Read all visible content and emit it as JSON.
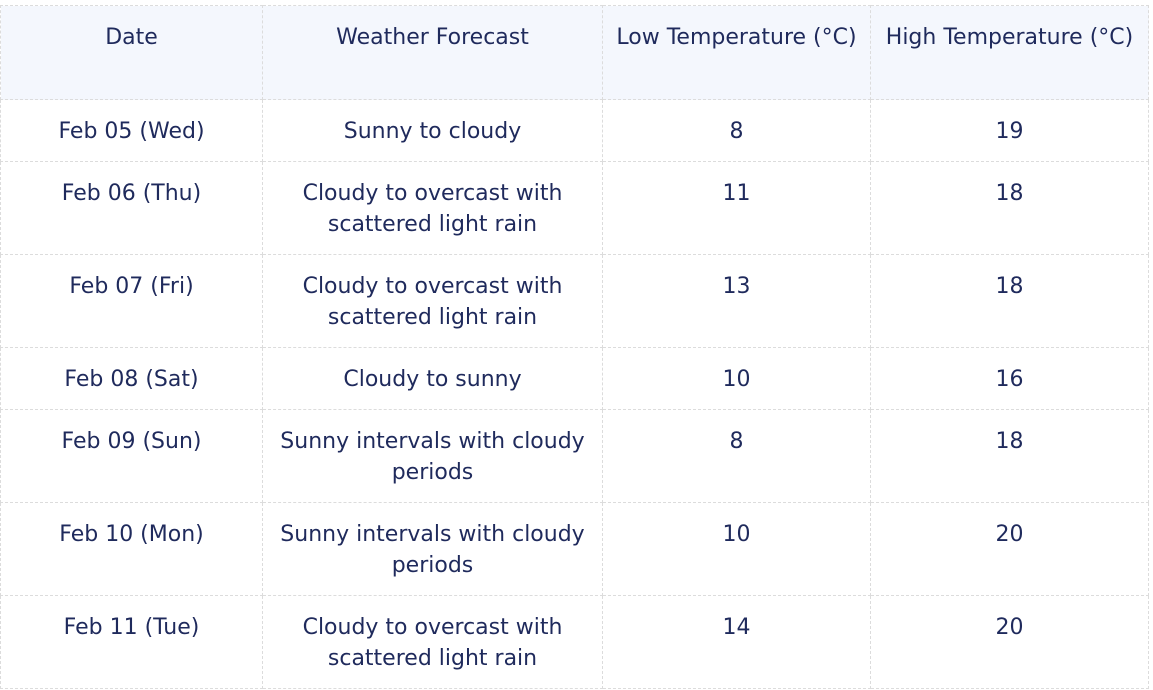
{
  "table": {
    "headers": {
      "date": "Date",
      "forecast": "Weather Forecast",
      "low": "Low Temperature (°C)",
      "high": "High Temperature (°C)"
    },
    "rows": [
      {
        "date": "Feb 05 (Wed)",
        "forecast": "Sunny to cloudy",
        "low": "8",
        "high": "19"
      },
      {
        "date": "Feb 06 (Thu)",
        "forecast": "Cloudy to overcast with scattered light rain",
        "low": "11",
        "high": "18"
      },
      {
        "date": "Feb 07 (Fri)",
        "forecast": "Cloudy to overcast with scattered light rain",
        "low": "13",
        "high": "18"
      },
      {
        "date": "Feb 08 (Sat)",
        "forecast": "Cloudy to sunny",
        "low": "10",
        "high": "16"
      },
      {
        "date": "Feb 09 (Sun)",
        "forecast": "Sunny intervals with cloudy periods",
        "low": "8",
        "high": "18"
      },
      {
        "date": "Feb 10 (Mon)",
        "forecast": "Sunny intervals with cloudy periods",
        "low": "10",
        "high": "20"
      },
      {
        "date": "Feb 11 (Tue)",
        "forecast": "Cloudy to overcast with scattered light rain",
        "low": "14",
        "high": "20"
      }
    ]
  }
}
